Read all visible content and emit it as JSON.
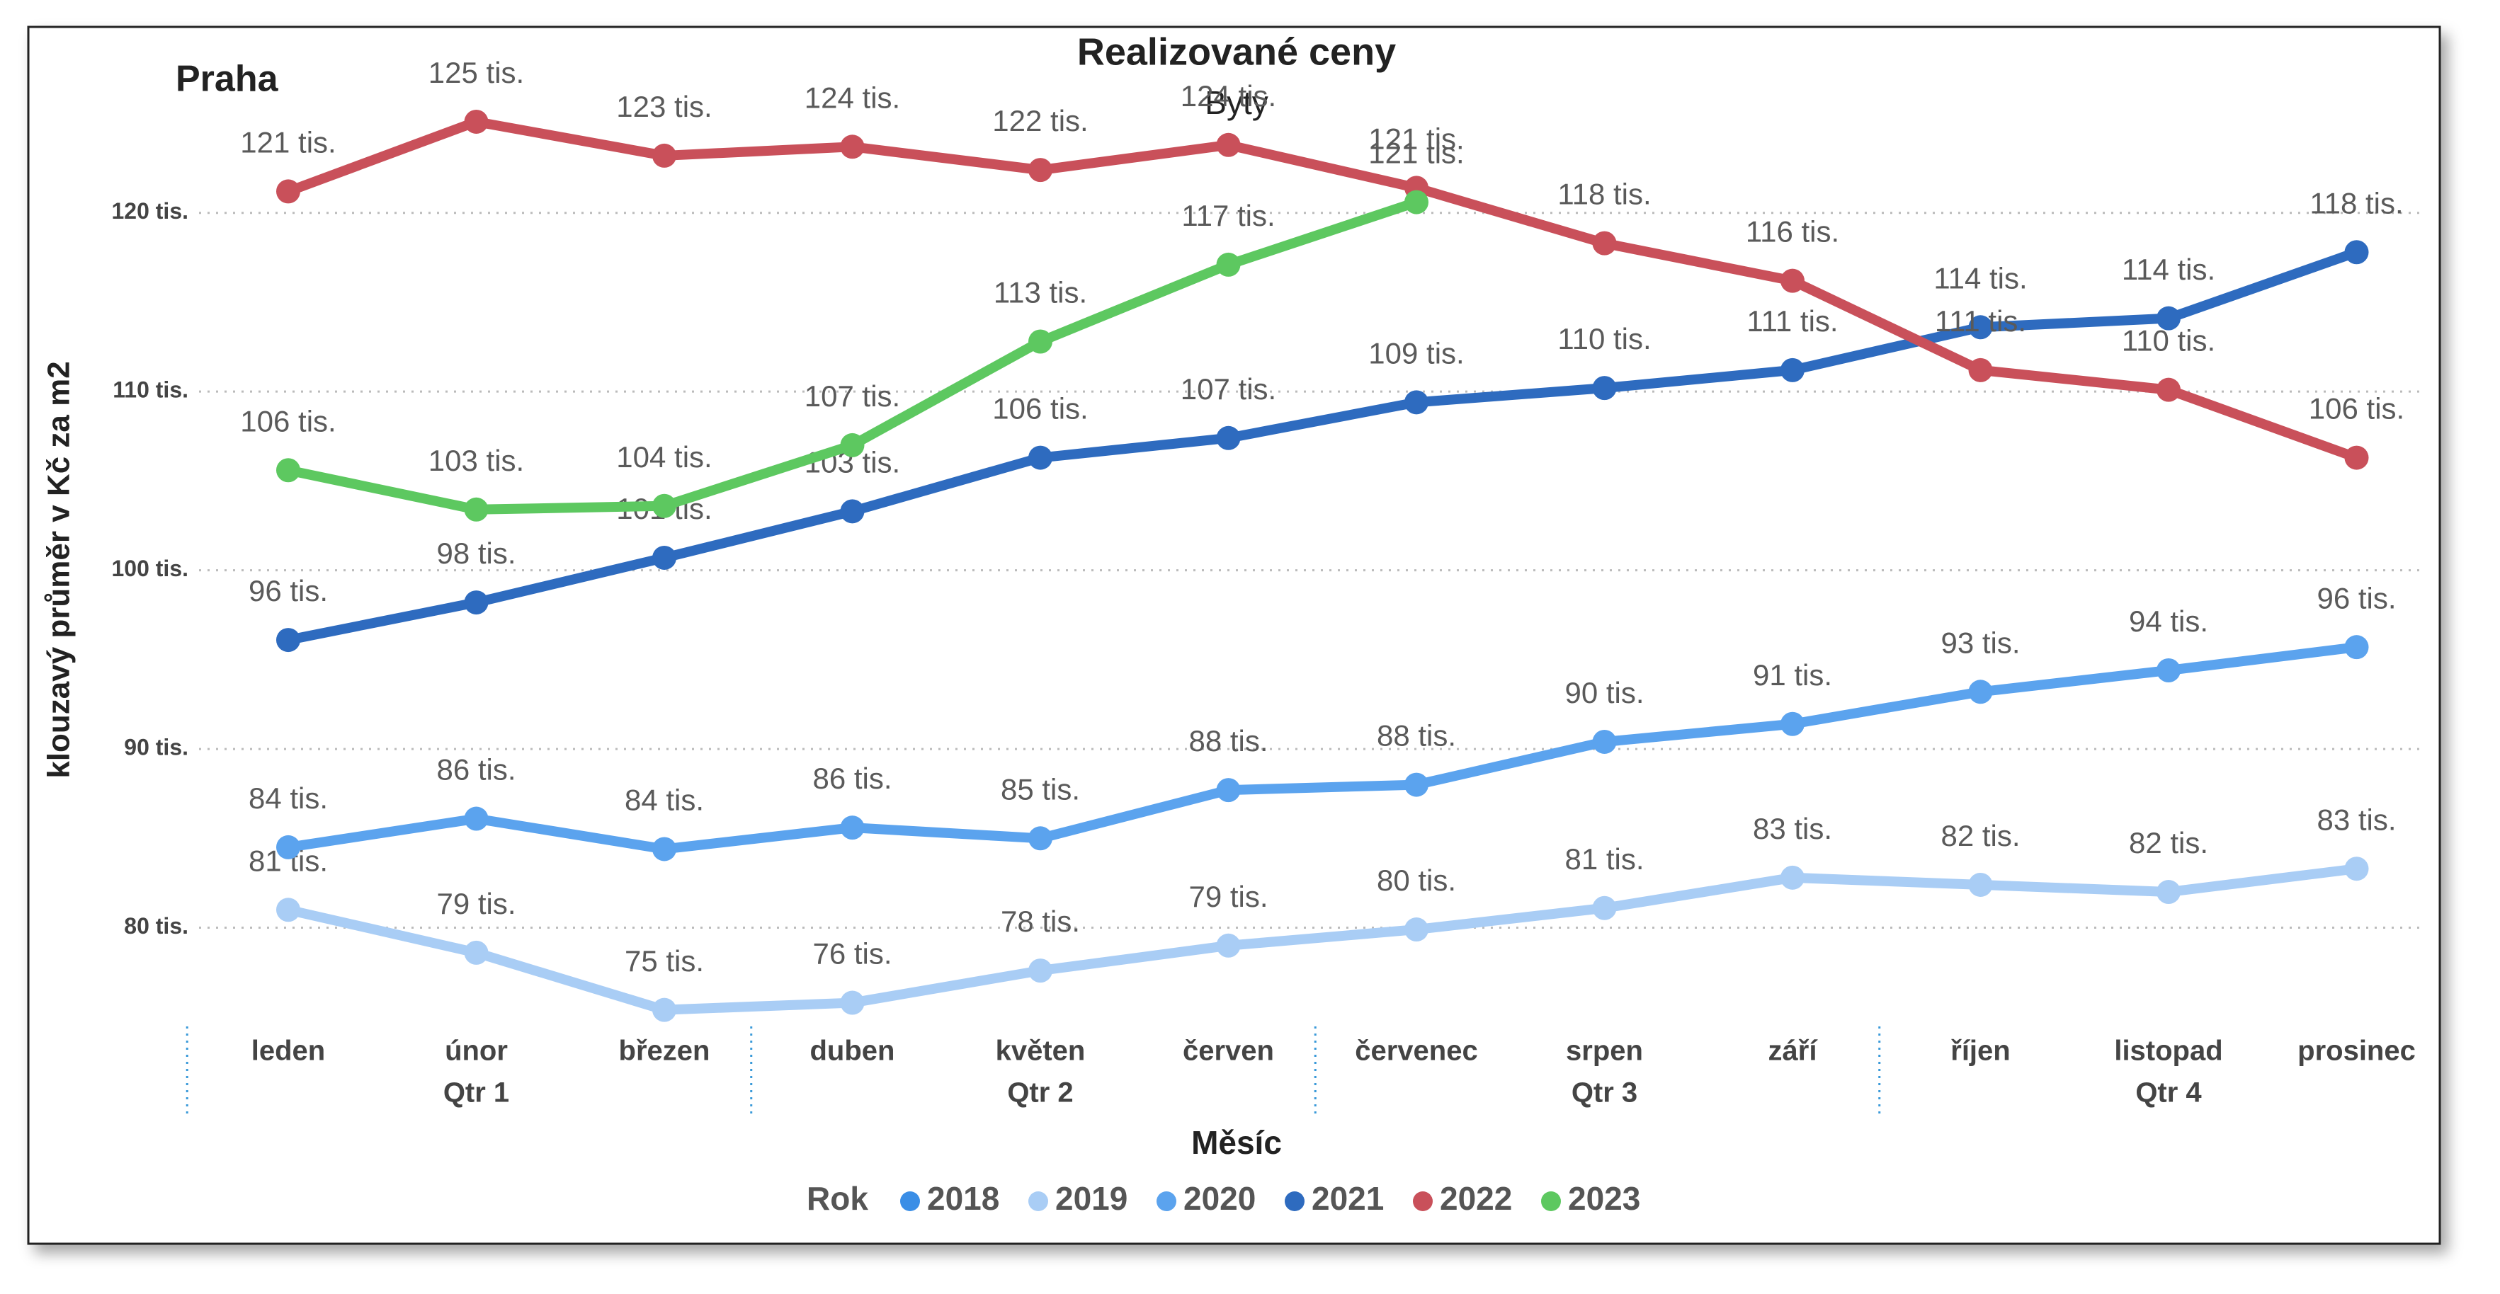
{
  "chart_data": {
    "type": "line",
    "title": "Realizované ceny",
    "subtitle": "Byty",
    "annotation": "Praha",
    "ylabel": "klouzavý průměr v Kč za m2",
    "xlabel": "Měsíc",
    "legend_title": "Rok",
    "categories": [
      "leden",
      "únor",
      "březen",
      "duben",
      "květen",
      "červen",
      "červenec",
      "srpen",
      "září",
      "říjen",
      "listopad",
      "prosinec"
    ],
    "quarters": [
      "Qtr 1",
      "Qtr 2",
      "Qtr 3",
      "Qtr 4"
    ],
    "ylim": [
      74,
      127
    ],
    "yticks": [
      {
        "value": 80,
        "label": "80 tis."
      },
      {
        "value": 90,
        "label": "90 tis."
      },
      {
        "value": 100,
        "label": "100 tis."
      },
      {
        "value": 110,
        "label": "110 tis."
      },
      {
        "value": 120,
        "label": "120 tis."
      }
    ],
    "grid": true,
    "legend": "bottom",
    "series": [
      {
        "name": "2018",
        "color": "#3a8ee6",
        "values": [
          null,
          null,
          null,
          null,
          null,
          null,
          null,
          null,
          null,
          null,
          null,
          null
        ],
        "value_labels": [
          null,
          null,
          null,
          null,
          null,
          null,
          null,
          null,
          null,
          null,
          null,
          null
        ]
      },
      {
        "name": "2019",
        "color": "#a9cdf5",
        "values": [
          81.0,
          78.6,
          75.4,
          75.8,
          77.6,
          79.0,
          79.9,
          81.1,
          82.8,
          82.4,
          82.0,
          83.3
        ],
        "value_labels": [
          "81 tis.",
          "79 tis.",
          "75 tis.",
          "76 tis.",
          "78 tis.",
          "79 tis.",
          "80 tis.",
          "81 tis.",
          "83 tis.",
          "82 tis.",
          "82 tis.",
          "83 tis."
        ]
      },
      {
        "name": "2020",
        "color": "#5ba3ee",
        "values": [
          84.5,
          86.1,
          84.4,
          85.6,
          85.0,
          87.7,
          88.0,
          90.4,
          91.4,
          93.2,
          94.4,
          95.7
        ],
        "value_labels": [
          "84 tis.",
          "86 tis.",
          "84 tis.",
          "86 tis.",
          "85 tis.",
          "88 tis.",
          "88 tis.",
          "90 tis.",
          "91 tis.",
          "93 tis.",
          "94 tis.",
          "96 tis."
        ]
      },
      {
        "name": "2021",
        "color": "#2e6bbf",
        "values": [
          96.1,
          98.2,
          100.7,
          103.3,
          106.3,
          107.4,
          109.4,
          110.2,
          111.2,
          113.6,
          114.1,
          117.8
        ],
        "value_labels": [
          "96 tis.",
          "98 tis.",
          "101 tis.",
          "103 tis.",
          "106 tis.",
          "107 tis.",
          "109 tis.",
          "110 tis.",
          "111 tis.",
          "114 tis.",
          "114 tis.",
          "118 tis."
        ]
      },
      {
        "name": "2022",
        "color": "#c9505a",
        "values": [
          121.2,
          125.1,
          123.2,
          123.7,
          122.4,
          123.8,
          121.4,
          118.3,
          116.2,
          111.2,
          110.1,
          106.3
        ],
        "value_labels": [
          "121 tis.",
          "125 tis.",
          "123 tis.",
          "124 tis.",
          "122 tis.",
          "124 tis.",
          "121 tis.",
          "118 tis.",
          "116 tis.",
          "111 tis.",
          "110 tis.",
          "106 tis."
        ]
      },
      {
        "name": "2023",
        "color": "#5dc860",
        "values": [
          105.6,
          103.4,
          103.6,
          107.0,
          112.8,
          117.1,
          120.6,
          null,
          null,
          null,
          null,
          null
        ],
        "value_labels": [
          "106 tis.",
          "103 tis.",
          "104 tis.",
          "107 tis.",
          "113 tis.",
          "117 tis.",
          "121 tis.",
          null,
          null,
          null,
          null,
          null
        ]
      }
    ]
  }
}
